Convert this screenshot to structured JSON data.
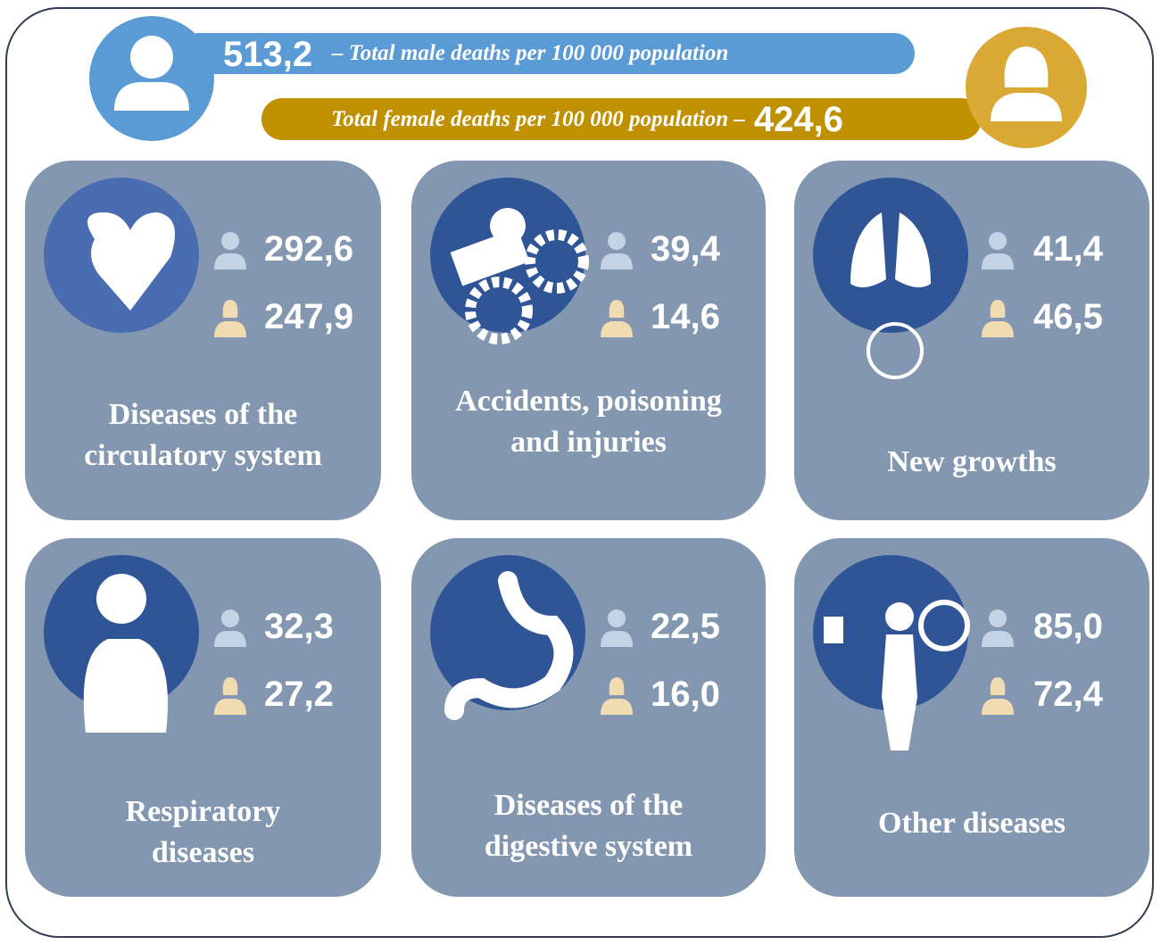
{
  "header": {
    "male": {
      "value": "513,2",
      "label": "– Total male deaths per 100 000 population"
    },
    "female": {
      "label": "Total female deaths per 100 000 population –",
      "value": "424,6"
    }
  },
  "cards": [
    {
      "title_lines": [
        "Diseases of the",
        "circulatory system"
      ],
      "male": "292,6",
      "female": "247,9"
    },
    {
      "title_lines": [
        "Accidents, poisoning",
        "and injuries"
      ],
      "male": "39,4",
      "female": "14,6"
    },
    {
      "title_lines": [
        "New growths"
      ],
      "male": "41,4",
      "female": "46,5"
    },
    {
      "title_lines": [
        "Respiratory",
        "diseases"
      ],
      "male": "32,3",
      "female": "27,2"
    },
    {
      "title_lines": [
        "Diseases of the",
        "digestive system"
      ],
      "male": "22,5",
      "female": "16,0"
    },
    {
      "title_lines": [
        "Other diseases"
      ],
      "male": "85,0",
      "female": "72,4"
    }
  ]
}
